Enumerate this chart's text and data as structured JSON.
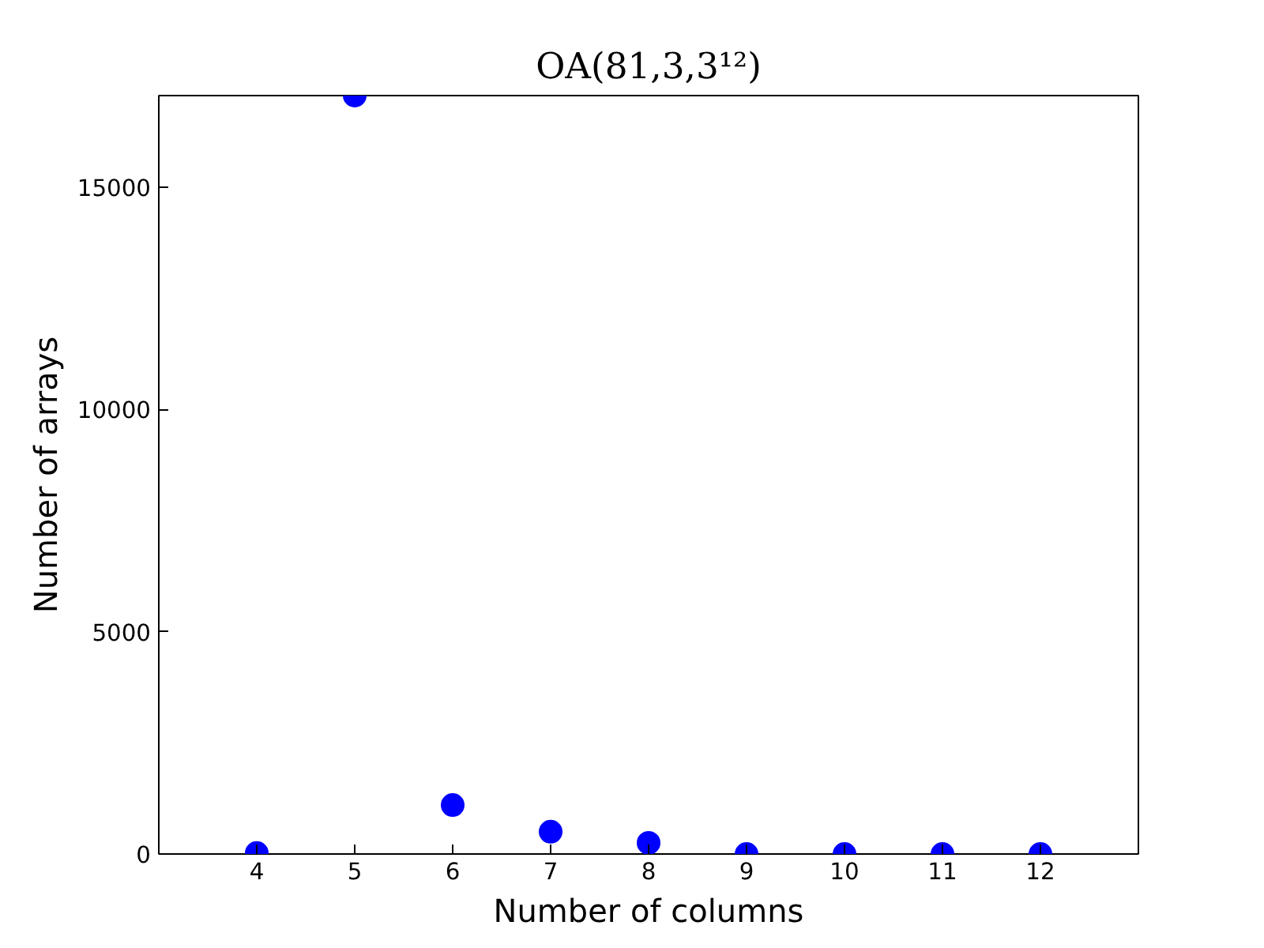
{
  "chart_data": {
    "type": "scatter",
    "title": "OA(81,3,3¹²)",
    "xlabel": "Number of columns",
    "ylabel": "Number of arrays",
    "x": [
      4,
      5,
      6,
      7,
      8,
      9,
      10,
      11,
      12
    ],
    "series": [
      {
        "color": "#0000ff",
        "values": [
          20,
          17060,
          1100,
          500,
          250,
          0,
          0,
          0,
          0
        ]
      }
    ],
    "xlim": [
      3,
      13
    ],
    "xticks": [
      4,
      5,
      6,
      7,
      8,
      9,
      10,
      11,
      12
    ],
    "ylim": [
      0,
      17060
    ],
    "yticks": [
      0,
      5000,
      10000,
      15000
    ],
    "marker": "circle",
    "grid": false
  }
}
